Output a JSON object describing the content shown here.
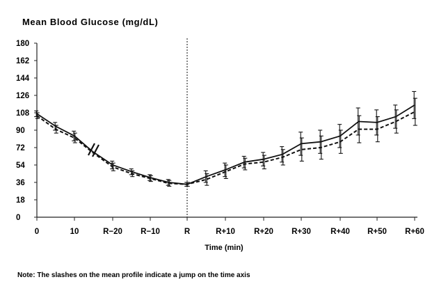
{
  "chart_data": {
    "type": "line",
    "title": "Mean Blood Glucose (mg/dL)",
    "xlabel": "Time (min)",
    "ylabel": "",
    "ylim": [
      0,
      180
    ],
    "yticks": [
      0,
      18,
      36,
      54,
      72,
      90,
      108,
      126,
      144,
      162,
      180
    ],
    "xtick_labels": [
      "0",
      "10",
      "R−20",
      "R−10",
      "R",
      "R+10",
      "R+20",
      "R+30",
      "R+40",
      "R+50",
      "R+60"
    ],
    "axis_break": "slashes between 10 and R−20",
    "reference_line_at": "R",
    "grid": false,
    "legend": "none",
    "series": [
      {
        "style": "solid",
        "x": [
          "0",
          "5",
          "10",
          "15",
          "R−20",
          "R−15",
          "R−10",
          "R−5",
          "R",
          "R+5",
          "R+10",
          "R+15",
          "R+20",
          "R+25",
          "R+30",
          "R+35",
          "R+40",
          "R+45",
          "R+50",
          "R+55",
          "R+60"
        ],
        "values": [
          107,
          94,
          84,
          68,
          54,
          47,
          41,
          36,
          34,
          42,
          49,
          57,
          60,
          65,
          76,
          78,
          84,
          99,
          98,
          104,
          116
        ],
        "errors": [
          3,
          4,
          5,
          0,
          4,
          3,
          3,
          3,
          2,
          6,
          7,
          6,
          7,
          8,
          12,
          12,
          12,
          14,
          13,
          12,
          14
        ]
      },
      {
        "style": "dashed",
        "x": [
          "0",
          "5",
          "10",
          "15",
          "R−20",
          "R−15",
          "R−10",
          "R−5",
          "R",
          "R+5",
          "R+10",
          "R+15",
          "R+20",
          "R+25",
          "R+30",
          "R+35",
          "R+40",
          "R+45",
          "R+50",
          "R+55",
          "R+60"
        ],
        "values": [
          105,
          91,
          82,
          67,
          52,
          45,
          40,
          35,
          34,
          39,
          47,
          55,
          57,
          62,
          70,
          72,
          78,
          91,
          91,
          99,
          109
        ],
        "errors": [
          3,
          4,
          5,
          0,
          4,
          3,
          3,
          3,
          2,
          6,
          7,
          6,
          7,
          8,
          12,
          12,
          12,
          14,
          13,
          12,
          14
        ]
      }
    ],
    "note": "Note: The slashes on the mean profile indicate a jump on the time axis"
  }
}
